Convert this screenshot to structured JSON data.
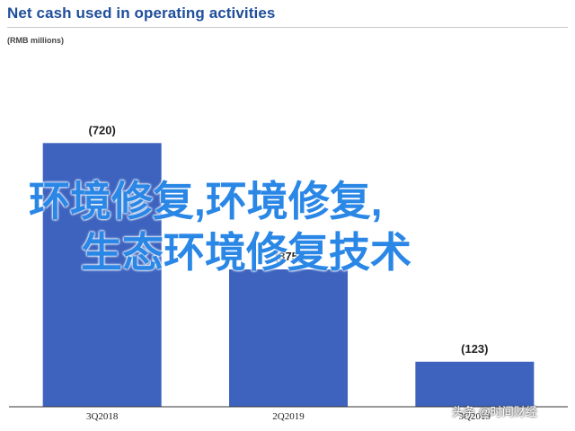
{
  "chart_data": {
    "type": "bar",
    "title": "Net cash used in operating activities",
    "subtitle": "(RMB millions)",
    "categories": [
      "3Q2018",
      "2Q2019",
      "3Q2019"
    ],
    "values": [
      -720,
      -375,
      -123
    ],
    "value_labels": [
      "(720)",
      "(375)",
      "(123)"
    ],
    "ylim": [
      0,
      760
    ],
    "grid": false,
    "legend": "none",
    "bar_color": "#3d63bf"
  },
  "overlay": {
    "line1": "环境修复,环境修复,",
    "line2": "生态环境修复技术"
  },
  "watermark": "头条 @时间财经",
  "colors": {
    "title": "#1f4e9c",
    "bar": "#3d63bf",
    "overlay_text": "#2a87e6"
  }
}
